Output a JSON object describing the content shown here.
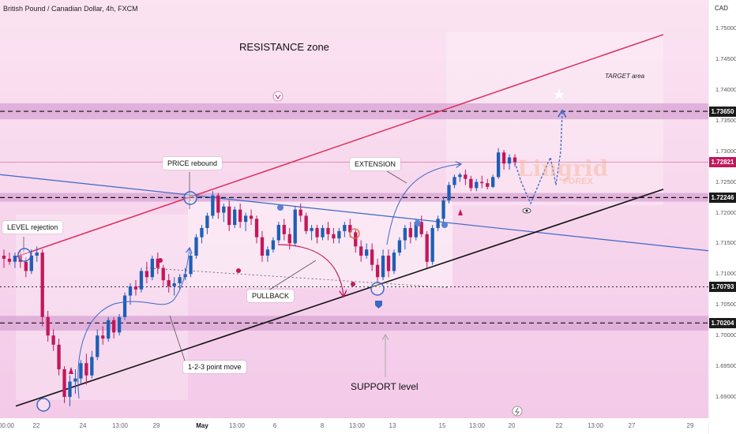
{
  "header": {
    "symbol_title": "British Pound / Canadian Dollar, 4h, FXCM",
    "currency": "CAD"
  },
  "price_tags": [
    {
      "label": "1.73650",
      "value": 1.7365
    },
    {
      "label": "1.72821",
      "value": 1.72821
    },
    {
      "label": "1.72246",
      "value": 1.72246
    },
    {
      "label": "1.70793",
      "value": 1.70793
    },
    {
      "label": "1.70204",
      "value": 1.70204
    }
  ],
  "annotations": {
    "resistance_zone": "RESISTANCE zone",
    "target_area": "TARGET area",
    "price_rebound": "PRICE rebound",
    "extension": "EXTENSION",
    "level_rejection": "LEVEL rejection",
    "pullback": "PULLBACK",
    "point_move": "1-2-3 point move",
    "support_level": "SUPPORT level"
  },
  "watermark": {
    "name": "Lingrid",
    "sub": "FOREX"
  },
  "colors": {
    "bull": "#1f5fb5",
    "bear": "#c2185b",
    "zone": "#d9a6d4",
    "resistance_line": "#dd2b5a",
    "trend_line": "#3b67c6"
  },
  "chart_data": {
    "type": "candlestick",
    "title": "British Pound / Canadian Dollar, 4h, FXCM",
    "yaxis_label": "CAD",
    "ylim": [
      1.6875,
      1.7525
    ],
    "y_ticks": [
      "1.75000",
      "1.74500",
      "1.74000",
      "1.73500",
      "1.73000",
      "1.72500",
      "1.72000",
      "1.71500",
      "1.71000",
      "1.70500",
      "1.70000",
      "1.69500",
      "1.69000"
    ],
    "x_ticks": [
      "00:00",
      "22",
      "24",
      "13:00",
      "29",
      "May",
      "13:00",
      "6",
      "8",
      "13:00",
      "13",
      "15",
      "13:00",
      "20",
      "22",
      "13:00",
      "27",
      "29"
    ],
    "zones": [
      {
        "name": "resistance",
        "from": 1.7352,
        "to": 1.7378
      },
      {
        "name": "mid",
        "from": 1.7218,
        "to": 1.7232
      },
      {
        "name": "support",
        "from": 1.7008,
        "to": 1.7032
      }
    ],
    "levels": [
      1.7365,
      1.72246,
      1.70793,
      1.70204
    ],
    "candles": [
      [
        1.713,
        1.714,
        1.711,
        1.7125
      ],
      [
        1.7125,
        1.7135,
        1.7115,
        1.712
      ],
      [
        1.712,
        1.7135,
        1.711,
        1.713
      ],
      [
        1.713,
        1.714,
        1.711,
        1.712
      ],
      [
        1.712,
        1.7128,
        1.7095,
        1.7105
      ],
      [
        1.7105,
        1.714,
        1.71,
        1.713
      ],
      [
        1.713,
        1.7145,
        1.712,
        1.7135
      ],
      [
        1.7135,
        1.714,
        1.7015,
        1.703
      ],
      [
        1.703,
        1.704,
        1.699,
        1.7
      ],
      [
        1.7,
        1.701,
        1.6975,
        1.6985
      ],
      [
        1.6985,
        1.6995,
        1.6935,
        1.6945
      ],
      [
        1.6945,
        1.695,
        1.689,
        1.69
      ],
      [
        1.69,
        1.6935,
        1.6885,
        1.6925
      ],
      [
        1.6925,
        1.6945,
        1.6905,
        1.693
      ],
      [
        1.693,
        1.696,
        1.692,
        1.6955
      ],
      [
        1.6955,
        1.697,
        1.692,
        1.6935
      ],
      [
        1.6935,
        1.6975,
        1.693,
        1.6965
      ],
      [
        1.6965,
        1.701,
        1.696,
        1.7
      ],
      [
        1.7,
        1.7015,
        1.6985,
        1.6995
      ],
      [
        1.6995,
        1.703,
        1.699,
        1.7025
      ],
      [
        1.7025,
        1.703,
        1.6995,
        1.7005
      ],
      [
        1.7005,
        1.7035,
        1.7,
        1.703
      ],
      [
        1.703,
        1.707,
        1.7025,
        1.7065
      ],
      [
        1.7065,
        1.7085,
        1.705,
        1.708
      ],
      [
        1.708,
        1.709,
        1.7065,
        1.7075
      ],
      [
        1.7075,
        1.711,
        1.707,
        1.7105
      ],
      [
        1.7105,
        1.712,
        1.7085,
        1.7095
      ],
      [
        1.7095,
        1.713,
        1.709,
        1.7125
      ],
      [
        1.7125,
        1.7135,
        1.71,
        1.711
      ],
      [
        1.711,
        1.7115,
        1.708,
        1.709
      ],
      [
        1.709,
        1.71,
        1.707,
        1.708
      ],
      [
        1.708,
        1.7095,
        1.7065,
        1.7085
      ],
      [
        1.7085,
        1.71,
        1.7075,
        1.7095
      ],
      [
        1.7095,
        1.711,
        1.709,
        1.71
      ],
      [
        1.71,
        1.7135,
        1.7095,
        1.713
      ],
      [
        1.713,
        1.7165,
        1.7125,
        1.716
      ],
      [
        1.716,
        1.718,
        1.715,
        1.7175
      ],
      [
        1.7175,
        1.72,
        1.7165,
        1.7195
      ],
      [
        1.7195,
        1.7235,
        1.719,
        1.7228
      ],
      [
        1.7228,
        1.7232,
        1.719,
        1.72
      ],
      [
        1.72,
        1.7215,
        1.7185,
        1.721
      ],
      [
        1.721,
        1.722,
        1.717,
        1.718
      ],
      [
        1.718,
        1.721,
        1.7175,
        1.7205
      ],
      [
        1.7205,
        1.7215,
        1.7175,
        1.7185
      ],
      [
        1.7185,
        1.72,
        1.717,
        1.7195
      ],
      [
        1.7195,
        1.7205,
        1.718,
        1.719
      ],
      [
        1.719,
        1.7195,
        1.715,
        1.716
      ],
      [
        1.716,
        1.717,
        1.712,
        1.713
      ],
      [
        1.713,
        1.7145,
        1.712,
        1.714
      ],
      [
        1.714,
        1.716,
        1.7135,
        1.7155
      ],
      [
        1.7155,
        1.7185,
        1.715,
        1.718
      ],
      [
        1.718,
        1.719,
        1.7155,
        1.7165
      ],
      [
        1.7165,
        1.7175,
        1.714,
        1.715
      ],
      [
        1.715,
        1.721,
        1.7145,
        1.7205
      ],
      [
        1.7205,
        1.7215,
        1.7185,
        1.7195
      ],
      [
        1.7195,
        1.72,
        1.7165,
        1.717
      ],
      [
        1.717,
        1.718,
        1.7155,
        1.7175
      ],
      [
        1.7175,
        1.718,
        1.715,
        1.716
      ],
      [
        1.716,
        1.718,
        1.7155,
        1.7175
      ],
      [
        1.7175,
        1.7185,
        1.7155,
        1.7165
      ],
      [
        1.7165,
        1.7175,
        1.715,
        1.7158
      ],
      [
        1.7158,
        1.7175,
        1.715,
        1.717
      ],
      [
        1.717,
        1.7185,
        1.716,
        1.718
      ],
      [
        1.718,
        1.719,
        1.716,
        1.7168
      ],
      [
        1.7168,
        1.7172,
        1.7135,
        1.7145
      ],
      [
        1.7145,
        1.7155,
        1.712,
        1.713
      ],
      [
        1.713,
        1.715,
        1.7125,
        1.714
      ],
      [
        1.714,
        1.715,
        1.7105,
        1.7115
      ],
      [
        1.7115,
        1.7125,
        1.7085,
        1.7095
      ],
      [
        1.7095,
        1.714,
        1.709,
        1.713
      ],
      [
        1.713,
        1.714,
        1.7095,
        1.7105
      ],
      [
        1.7105,
        1.714,
        1.71,
        1.7135
      ],
      [
        1.7135,
        1.716,
        1.713,
        1.7155
      ],
      [
        1.7155,
        1.718,
        1.714,
        1.7175
      ],
      [
        1.7175,
        1.7185,
        1.715,
        1.716
      ],
      [
        1.716,
        1.719,
        1.7155,
        1.7185
      ],
      [
        1.7185,
        1.7195,
        1.716,
        1.7165
      ],
      [
        1.7165,
        1.717,
        1.711,
        1.712
      ],
      [
        1.712,
        1.718,
        1.7115,
        1.7175
      ],
      [
        1.7175,
        1.7195,
        1.717,
        1.719
      ],
      [
        1.719,
        1.7225,
        1.7185,
        1.722
      ],
      [
        1.722,
        1.725,
        1.7215,
        1.7245
      ],
      [
        1.7245,
        1.7262,
        1.724,
        1.7258
      ],
      [
        1.7258,
        1.7265,
        1.725,
        1.7262
      ],
      [
        1.7262,
        1.727,
        1.7245,
        1.7255
      ],
      [
        1.7255,
        1.726,
        1.7235,
        1.724
      ],
      [
        1.724,
        1.7255,
        1.7235,
        1.725
      ],
      [
        1.725,
        1.726,
        1.724,
        1.7248
      ],
      [
        1.7248,
        1.7255,
        1.7238,
        1.7242
      ],
      [
        1.7242,
        1.7262,
        1.724,
        1.7258
      ],
      [
        1.7258,
        1.7305,
        1.7255,
        1.7298
      ],
      [
        1.7298,
        1.7302,
        1.727,
        1.728
      ],
      [
        1.728,
        1.7295,
        1.727,
        1.729
      ],
      [
        1.729,
        1.7295,
        1.7275,
        1.7282
      ]
    ],
    "projection": [
      1.7282,
      1.725,
      1.7215,
      1.7255,
      1.729,
      1.7245,
      1.73,
      1.7365
    ]
  }
}
